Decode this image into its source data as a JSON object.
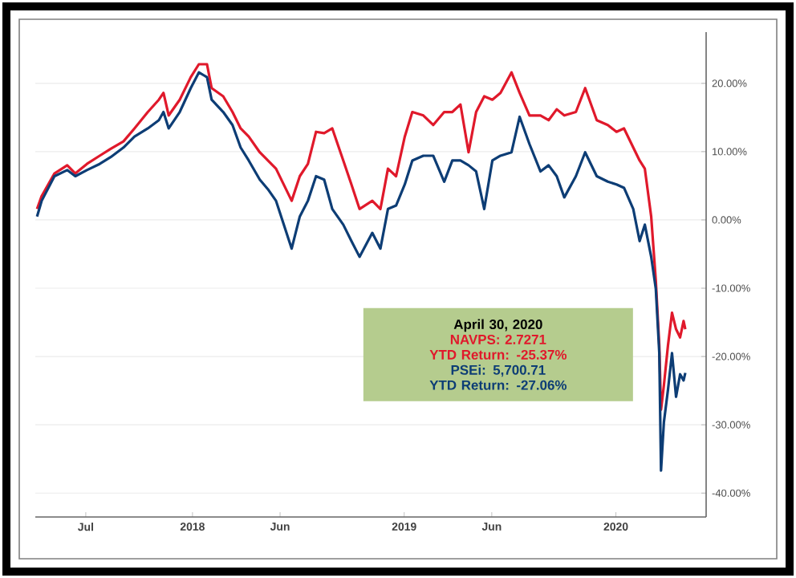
{
  "chart_data": {
    "type": "line",
    "x": [
      "2017-04-08",
      "2017-04-16",
      "2017-05-08",
      "2017-05-30",
      "2017-06-13",
      "2017-07-03",
      "2017-07-25",
      "2017-08-13",
      "2017-09-04",
      "2017-09-23",
      "2017-10-16",
      "2017-11-04",
      "2017-11-12",
      "2017-11-21",
      "2017-12-10",
      "2017-12-29",
      "2018-01-12",
      "2018-01-26",
      "2018-02-03",
      "2018-02-23",
      "2018-03-11",
      "2018-03-25",
      "2018-04-08",
      "2018-04-27",
      "2018-05-11",
      "2018-05-25",
      "2018-06-21",
      "2018-07-05",
      "2018-07-19",
      "2018-08-02",
      "2018-08-16",
      "2018-08-30",
      "2018-09-18",
      "2018-10-02",
      "2018-10-16",
      "2018-11-07",
      "2018-11-21",
      "2018-12-04",
      "2018-12-18",
      "2019-01-02",
      "2019-01-15",
      "2019-02-03",
      "2019-02-20",
      "2019-03-11",
      "2019-03-25",
      "2019-04-08",
      "2019-04-22",
      "2019-05-05",
      "2019-05-19",
      "2019-06-02",
      "2019-06-16",
      "2019-07-05",
      "2019-07-19",
      "2019-08-05",
      "2019-08-24",
      "2019-09-07",
      "2019-09-21",
      "2019-10-04",
      "2019-10-24",
      "2019-11-09",
      "2019-11-29",
      "2019-12-18",
      "2020-01-02",
      "2020-01-15",
      "2020-01-31",
      "2020-02-11",
      "2020-02-20",
      "2020-03-02",
      "2020-03-10",
      "2020-03-16",
      "2020-03-19",
      "2020-03-24",
      "2020-03-31",
      "2020-04-07",
      "2020-04-14",
      "2020-04-21",
      "2020-04-27",
      "2020-04-30"
    ],
    "series": [
      {
        "color": "#e0192b",
        "values": [
          1.6,
          3.5,
          6.8,
          8.0,
          6.8,
          8.2,
          9.4,
          10.4,
          11.5,
          13.4,
          15.8,
          17.6,
          18.6,
          15.3,
          17.6,
          20.9,
          22.8,
          22.8,
          19.3,
          18.1,
          15.8,
          13.4,
          12.2,
          9.9,
          8.7,
          7.5,
          2.8,
          6.4,
          8.2,
          12.9,
          12.7,
          13.4,
          8.7,
          5.2,
          1.6,
          2.8,
          1.6,
          7.5,
          6.4,
          12.2,
          15.8,
          15.3,
          13.9,
          15.8,
          15.8,
          16.9,
          9.9,
          15.8,
          18.1,
          17.6,
          18.6,
          21.6,
          18.6,
          15.3,
          15.3,
          14.6,
          16.2,
          15.3,
          15.8,
          19.3,
          14.6,
          13.9,
          12.9,
          13.4,
          10.6,
          8.7,
          7.5,
          0.5,
          -8.9,
          -18.4,
          -27.8,
          -24.2,
          -18.4,
          -13.6,
          -16.0,
          -17.2,
          -14.8,
          -16.0
        ]
      },
      {
        "color": "#0d3d75",
        "values": [
          0.5,
          2.8,
          6.4,
          7.3,
          6.4,
          7.3,
          8.2,
          9.2,
          10.6,
          12.2,
          13.4,
          14.6,
          15.8,
          13.4,
          15.8,
          19.3,
          21.6,
          20.9,
          17.6,
          15.8,
          13.9,
          10.6,
          8.7,
          5.9,
          4.5,
          2.8,
          -4.2,
          0.5,
          2.8,
          6.4,
          5.9,
          1.6,
          -0.7,
          -3.1,
          -5.4,
          -1.9,
          -4.2,
          1.6,
          2.1,
          5.2,
          8.7,
          9.4,
          9.4,
          5.6,
          8.7,
          8.7,
          8.0,
          7.1,
          1.6,
          8.7,
          9.4,
          9.9,
          15.1,
          11.1,
          7.1,
          8.0,
          6.4,
          3.3,
          6.4,
          9.9,
          6.4,
          5.6,
          5.2,
          4.7,
          1.6,
          -3.1,
          -0.7,
          -5.4,
          -10.1,
          -19.5,
          -36.7,
          -29.6,
          -24.9,
          -19.5,
          -25.9,
          -22.6,
          -23.5,
          -22.4
        ]
      }
    ],
    "xlim": [
      "2017-04-05",
      "2020-06-05"
    ],
    "xticks": [
      {
        "value": "2017-07-01",
        "label": "Jul"
      },
      {
        "value": "2018-01-01",
        "label": "2018"
      },
      {
        "value": "2018-06-01",
        "label": "Jun"
      },
      {
        "value": "2019-01-01",
        "label": "2019"
      },
      {
        "value": "2019-06-01",
        "label": "Jun"
      },
      {
        "value": "2020-01-01",
        "label": "2020"
      }
    ],
    "ylim": [
      -43.5,
      27.5
    ],
    "yticks": [
      {
        "value": 20,
        "label": "20.00%"
      },
      {
        "value": 10,
        "label": "10.00%"
      },
      {
        "value": 0,
        "label": "0.00%"
      },
      {
        "value": -10,
        "label": "-10.00%"
      },
      {
        "value": -20,
        "label": "-20.00%"
      },
      {
        "value": -30,
        "label": "-30.00%"
      },
      {
        "value": -40,
        "label": "-40.00%"
      }
    ],
    "grid": "y",
    "line_style": "solid",
    "annotations": [
      "April 30, 2020",
      "NAVPS: 2.7271",
      "YTD Return: -25.37%",
      "PSEi: 5,700.71",
      "YTD Return: -27.06%"
    ]
  }
}
